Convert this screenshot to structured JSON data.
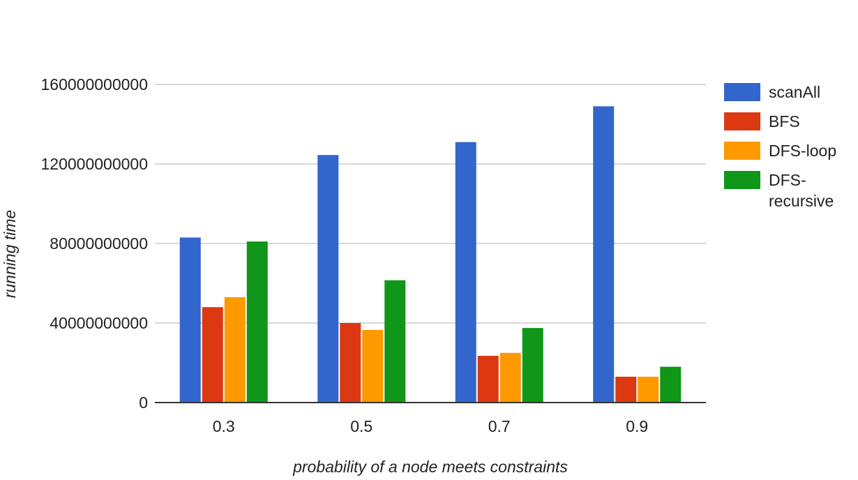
{
  "chart_data": {
    "type": "bar",
    "title": "",
    "xlabel": "probability of a node meets constraints",
    "ylabel": "running time",
    "categories": [
      "0.3",
      "0.5",
      "0.7",
      "0.9"
    ],
    "ylim": [
      0,
      160000000000
    ],
    "yticks": [
      0,
      40000000000,
      80000000000,
      120000000000,
      160000000000
    ],
    "ytick_labels": [
      "0",
      "40000000000",
      "80000000000",
      "120000000000",
      "160000000000"
    ],
    "grid": true,
    "legend_position": "right",
    "series": [
      {
        "name": "scanAll",
        "color": "#3366cc",
        "values": [
          83000000000,
          124500000000,
          131000000000,
          149000000000
        ]
      },
      {
        "name": "BFS",
        "color": "#dc3912",
        "values": [
          48000000000,
          40000000000,
          23500000000,
          13000000000
        ]
      },
      {
        "name": "DFS-loop",
        "color": "#ff9900",
        "values": [
          53000000000,
          36500000000,
          25000000000,
          13000000000
        ]
      },
      {
        "name": "DFS-recursive",
        "legend_lines": [
          "DFS-",
          "recursive"
        ],
        "color": "#109618",
        "values": [
          81000000000,
          61500000000,
          37500000000,
          18000000000
        ]
      }
    ]
  }
}
